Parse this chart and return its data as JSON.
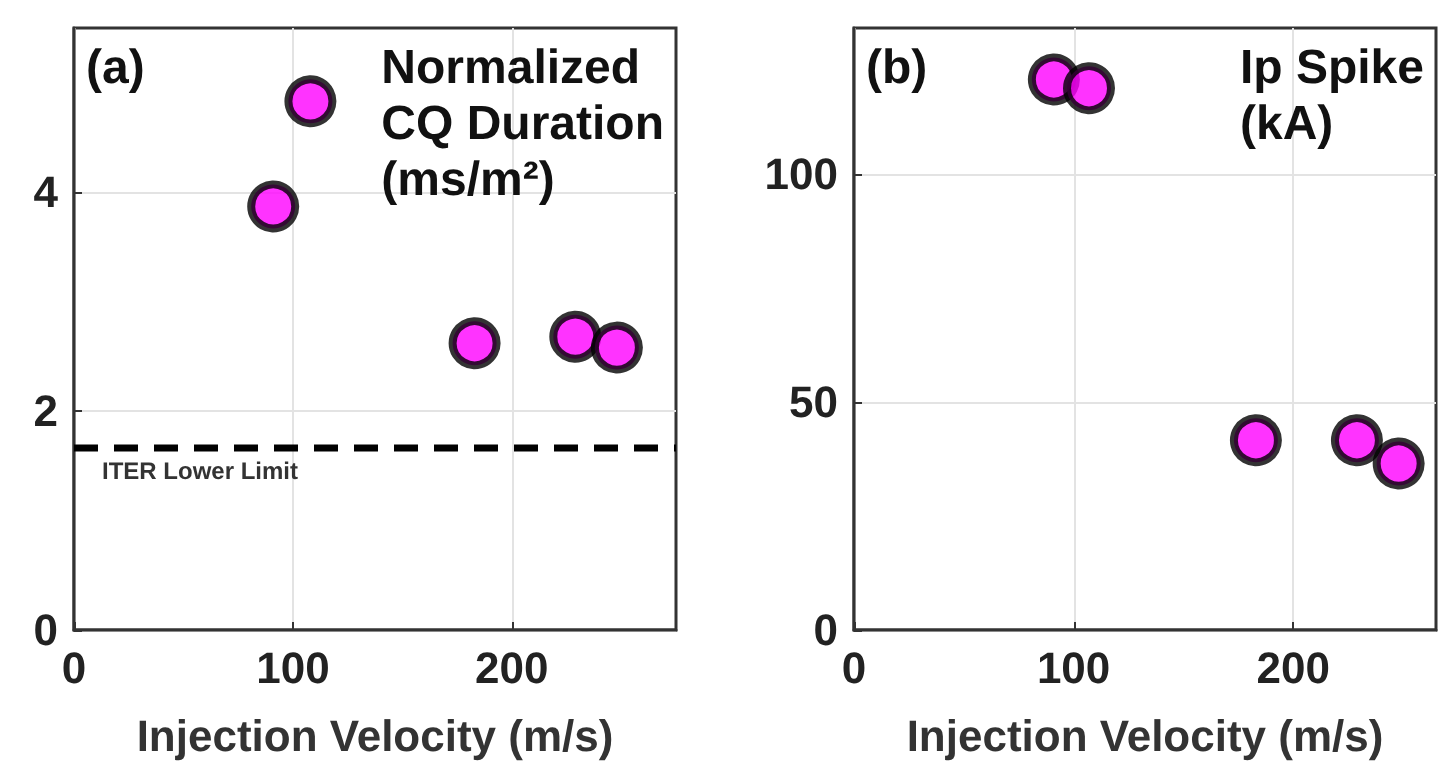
{
  "chart_data": [
    {
      "type": "scatter",
      "title": "Normalized CQ Duration (ms/m²)",
      "xlabel": "Injection Velocity (m/s)",
      "annotations": [
        "(a)"
      ],
      "x": [
        91,
        108,
        183,
        229,
        248
      ],
      "values": [
        3.87,
        4.83,
        2.62,
        2.68,
        2.58
      ],
      "color": "#ff00ff",
      "marker": "circle",
      "xlim": [
        0,
        275
      ],
      "xticks": [
        0,
        100,
        200
      ],
      "ylim": [
        0,
        5.5
      ],
      "yticks": [
        0,
        2,
        4
      ],
      "grid": true,
      "ref_lines": [
        {
          "axis": "y",
          "value": 1.67,
          "label": "ITER Lower Limit",
          "color": "#000000",
          "line_style": "dashed"
        }
      ]
    },
    {
      "type": "scatter",
      "title": "Ip Spike (kA)",
      "xlabel": "Injection Velocity (m/s)",
      "annotations": [
        "(b)"
      ],
      "x": [
        91,
        107,
        183,
        229,
        248
      ],
      "values": [
        120.7,
        118.8,
        41.6,
        41.6,
        36.5
      ],
      "color": "#ff00ff",
      "marker": "circle",
      "xlim": [
        0,
        265
      ],
      "xticks": [
        0,
        100,
        200
      ],
      "ylim": [
        0,
        132
      ],
      "yticks": [
        0,
        50,
        100
      ],
      "grid": true
    }
  ]
}
